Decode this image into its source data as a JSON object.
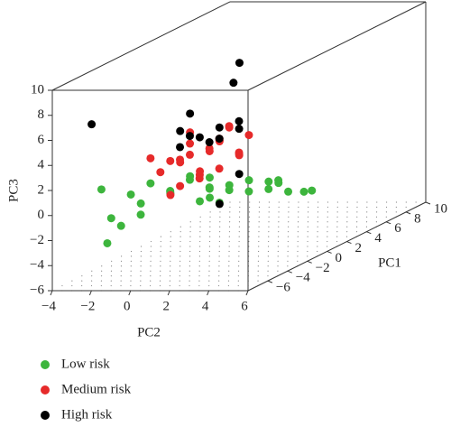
{
  "chart_data": {
    "type": "scatter3d",
    "xlabel": "PC1",
    "ylabel": "PC2",
    "zlabel": "PC3",
    "xlim": [
      -8,
      10
    ],
    "xticks": [
      {
        "value": -6,
        "label": "−6"
      },
      {
        "value": -4,
        "label": "−4"
      },
      {
        "value": -2,
        "label": "−2"
      },
      0,
      2,
      4,
      6,
      8,
      10
    ],
    "ylim": [
      -4,
      6
    ],
    "yticks": [
      {
        "value": -4,
        "label": "−4"
      },
      {
        "value": -2,
        "label": "−2"
      },
      0,
      2,
      4,
      6
    ],
    "zlim": [
      -6,
      10
    ],
    "zticks": [
      {
        "value": -6,
        "label": "−6"
      },
      {
        "value": -4,
        "label": "−4"
      },
      {
        "value": -2,
        "label": "−2"
      },
      0,
      2,
      4,
      6,
      8,
      10
    ],
    "series": [
      {
        "name": "Low risk",
        "color": "#3db53d",
        "x": [
          -6,
          -6,
          -6,
          -5,
          -4,
          -3,
          -2,
          -1,
          0,
          1,
          2,
          3,
          4,
          5,
          6,
          2,
          -3,
          -4,
          -2,
          0,
          1,
          3,
          -1,
          2,
          -5,
          4,
          1,
          0,
          3,
          5
        ],
        "y": [
          -2.2,
          -2,
          -2.5,
          -1.5,
          -1,
          -0.5,
          0,
          0.5,
          0,
          0.5,
          1,
          1.5,
          2,
          2.3,
          2.2,
          0,
          -2,
          -1.5,
          -1,
          -1,
          -0.5,
          0.5,
          -1.5,
          -1,
          -2,
          1,
          0,
          -0.5,
          2,
          1
        ],
        "z": [
          -3,
          -1,
          1.3,
          0.5,
          1,
          0,
          0.5,
          -0.5,
          -1,
          -1.5,
          -2,
          -2.2,
          -2.8,
          -3.2,
          -3.5,
          -1.5,
          -1,
          -1.5,
          -0.5,
          0,
          -0.5,
          -1.5,
          -1,
          -2.5,
          -2,
          -2,
          -2.5,
          -2,
          -1.5,
          -2.5
        ]
      },
      {
        "name": "Medium risk",
        "color": "#e62a2a",
        "x": [
          -2,
          -2,
          -1,
          0,
          0,
          1,
          1,
          -1,
          -3,
          -3,
          0,
          2,
          2,
          -1,
          1,
          -2,
          0,
          -1,
          -4,
          3,
          1,
          -2,
          0,
          -3,
          2
        ],
        "y": [
          -1,
          0,
          -0.5,
          0,
          0.5,
          0,
          1,
          1,
          -1,
          0,
          -1,
          0.5,
          -0.5,
          0,
          -1,
          1,
          1,
          -1,
          -1,
          0,
          0.5,
          -0.5,
          -2,
          1,
          1
        ],
        "z": [
          2,
          2.5,
          3,
          2,
          3,
          2.5,
          1.5,
          1,
          1.5,
          2.5,
          3.5,
          1,
          2,
          0.5,
          0,
          3,
          4,
          1.5,
          3,
          0.5,
          3.5,
          0,
          -1.5,
          1,
          2.5
        ]
      },
      {
        "name": "High risk",
        "color": "#000000",
        "x": [
          -6,
          -2,
          0,
          1,
          6,
          5,
          -1,
          0,
          -3,
          2,
          -1,
          1,
          -2,
          3,
          2
        ],
        "y": [
          -3,
          0,
          -1,
          1,
          -1.5,
          -1.3,
          0,
          0.5,
          0,
          0.5,
          -1,
          0,
          1,
          0,
          -0.5
        ],
        "z": [
          6.5,
          4,
          5,
          4,
          6.7,
          5.5,
          3.5,
          3,
          3.5,
          3,
          4,
          3.5,
          3.5,
          -1,
          -3
        ]
      }
    ]
  }
}
